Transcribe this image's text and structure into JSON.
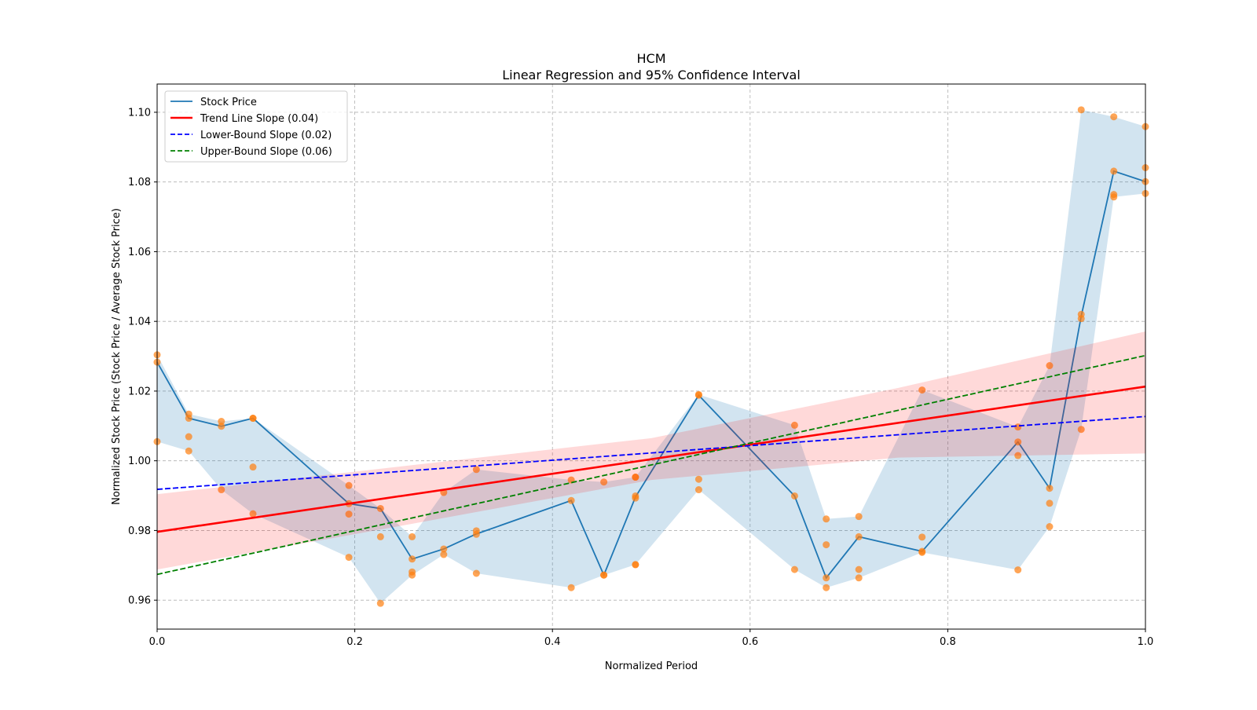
{
  "chart_data": {
    "type": "line",
    "title": "HCM",
    "subtitle": "Linear Regression and 95% Confidence Interval",
    "xlabel": "Normalized Period",
    "ylabel": "Normalized Stock Price (Stock Price / Average Stock Price)",
    "xlim": [
      0,
      1
    ],
    "ylim": [
      0.9517,
      1.1081
    ],
    "grid": true,
    "legend_position": "top-left",
    "x_ticks": [
      "0.0",
      "0.2",
      "0.4",
      "0.6",
      "0.8",
      "1.0"
    ],
    "y_ticks": [
      "0.96",
      "0.98",
      "1.00",
      "1.02",
      "1.04",
      "1.06",
      "1.08",
      "1.10"
    ],
    "colors": {
      "stock": "#1f77b4",
      "scatter": "#ff7f0e",
      "trend": "#ff0000",
      "lower": "#0000ff",
      "upper": "#008000"
    },
    "legend": [
      {
        "label": "Stock Price",
        "key": "stock",
        "style": "solid"
      },
      {
        "label": "Trend Line Slope (0.04)",
        "key": "trend",
        "style": "solid"
      },
      {
        "label": "Lower-Bound Slope (0.02)",
        "key": "lower",
        "style": "dashed"
      },
      {
        "label": "Upper-Bound Slope (0.06)",
        "key": "upper",
        "style": "dashed"
      }
    ],
    "stock_price": {
      "name": "Stock Price",
      "x": [
        0,
        0.032,
        0.065,
        0.097,
        0.194,
        0.226,
        0.258,
        0.29,
        0.323,
        0.419,
        0.452,
        0.484,
        0.548,
        0.645,
        0.677,
        0.71,
        0.774,
        0.871,
        0.903,
        0.935,
        0.968,
        1.0
      ],
      "y": [
        1.0283,
        1.0122,
        1.0099,
        1.0122,
        0.9877,
        0.9863,
        0.9718,
        0.9747,
        0.979,
        0.9886,
        0.9672,
        0.9896,
        1.0188,
        0.9899,
        0.9664,
        0.9782,
        0.974,
        1.0054,
        0.9921,
        1.0415,
        1.0831,
        1.0801
      ]
    },
    "scatter": [
      [
        1.0304,
        1.0283,
        1.0055
      ],
      [
        1.0134,
        1.0122,
        1.0069,
        1.0028
      ],
      [
        1.0113,
        1.0099,
        0.9917
      ],
      [
        1.0122,
        1.0122,
        0.9982,
        0.9848
      ],
      [
        0.9929,
        0.9877,
        0.9847,
        0.9723
      ],
      [
        0.9863,
        0.9782,
        0.9591
      ],
      [
        0.9782,
        0.9718,
        0.9681,
        0.9672
      ],
      [
        0.9909,
        0.9747,
        0.9731
      ],
      [
        0.9975,
        0.9799,
        0.9789,
        0.9677
      ],
      [
        0.9945,
        0.9886,
        0.9636
      ],
      [
        0.9939,
        0.9672,
        0.9672
      ],
      [
        0.9953,
        0.9953,
        0.9899,
        0.9893,
        0.9702,
        0.9702
      ],
      [
        1.0188,
        1.019,
        0.9947,
        0.9917
      ],
      [
        1.0102,
        0.9899,
        0.9688
      ],
      [
        0.9833,
        0.9759,
        0.9664,
        0.9636
      ],
      [
        0.984,
        0.9782,
        0.9688,
        0.9664
      ],
      [
        1.0203,
        0.9781,
        0.974,
        0.9737
      ],
      [
        1.0097,
        1.0054,
        1.0015,
        0.9687
      ],
      [
        1.0273,
        0.9921,
        0.9878,
        0.9811
      ],
      [
        1.1007,
        1.042,
        1.0408,
        1.009
      ],
      [
        1.0987,
        1.0831,
        1.0764,
        1.0757
      ],
      [
        1.0959,
        1.0841,
        1.0801,
        1.0767
      ]
    ],
    "trend_line": {
      "name": "Trend Line Slope (0.04)",
      "x": [
        0,
        1
      ],
      "y": [
        0.9796,
        1.0213
      ]
    },
    "lower_bound_line": {
      "name": "Lower-Bound Slope (0.02)",
      "x": [
        0,
        1
      ],
      "y": [
        0.9918,
        1.0127
      ]
    },
    "upper_bound_line": {
      "name": "Upper-Bound Slope (0.06)",
      "x": [
        0,
        1
      ],
      "y": [
        0.9674,
        1.0302
      ]
    },
    "confidence_band": {
      "x": [
        0,
        0.25,
        0.5,
        0.75,
        1.0
      ],
      "lower": [
        0.9688,
        0.9815,
        0.9945,
        1.0009,
        1.0021
      ],
      "upper": [
        0.9904,
        0.9985,
        1.0065,
        1.0209,
        1.0371
      ]
    }
  }
}
